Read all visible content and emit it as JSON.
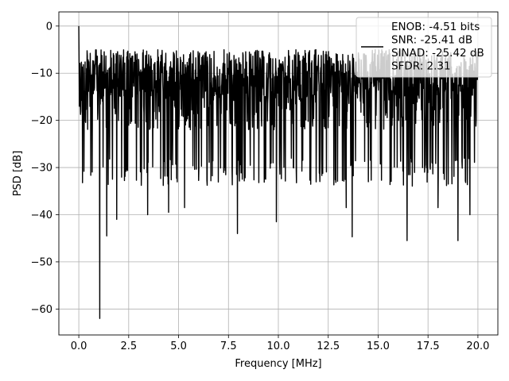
{
  "chart_data": {
    "type": "line",
    "title": "",
    "xlabel": "Frequency [MHz]",
    "ylabel": "PSD [dB]",
    "xlim": [
      -1.0,
      21.0
    ],
    "ylim": [
      -65.5,
      3.0
    ],
    "xticks": [
      0.0,
      2.5,
      5.0,
      7.5,
      10.0,
      12.5,
      15.0,
      17.5,
      20.0
    ],
    "xtick_labels": [
      "0.0",
      "2.5",
      "5.0",
      "7.5",
      "10.0",
      "12.5",
      "15.0",
      "17.5",
      "20.0"
    ],
    "yticks": [
      0,
      -10,
      -20,
      -30,
      -40,
      -50,
      -60
    ],
    "ytick_labels": [
      "0",
      "−10",
      "−20",
      "−30",
      "−40",
      "−50",
      "−60"
    ],
    "grid": true,
    "legend_position": "top-right",
    "series_color": "#000000",
    "legend_lines": [
      "ENOB: -4.51 bits",
      "SNR: -25.41 dB",
      "SINAD: -25.42 dB",
      "SFDR: 2.31"
    ],
    "series": [
      {
        "style": "noise-spectrum",
        "x_range": [
          0.0,
          20.0
        ],
        "peak": {
          "x": 0.0,
          "y": 0.0
        },
        "typical_band": [
          -28,
          -5
        ],
        "notable_dips": [
          {
            "x": 1.05,
            "y": -62
          },
          {
            "x": 1.4,
            "y": -44.5
          },
          {
            "x": 1.9,
            "y": -41
          },
          {
            "x": 3.45,
            "y": -40
          },
          {
            "x": 4.5,
            "y": -39.5
          },
          {
            "x": 5.3,
            "y": -38.5
          },
          {
            "x": 7.95,
            "y": -44
          },
          {
            "x": 9.9,
            "y": -41.5
          },
          {
            "x": 13.4,
            "y": -38.5
          },
          {
            "x": 13.7,
            "y": -44.7
          },
          {
            "x": 16.45,
            "y": -45.5
          },
          {
            "x": 18.0,
            "y": -38.5
          },
          {
            "x": 19.0,
            "y": -45.5
          },
          {
            "x": 19.6,
            "y": -40
          }
        ]
      }
    ]
  }
}
